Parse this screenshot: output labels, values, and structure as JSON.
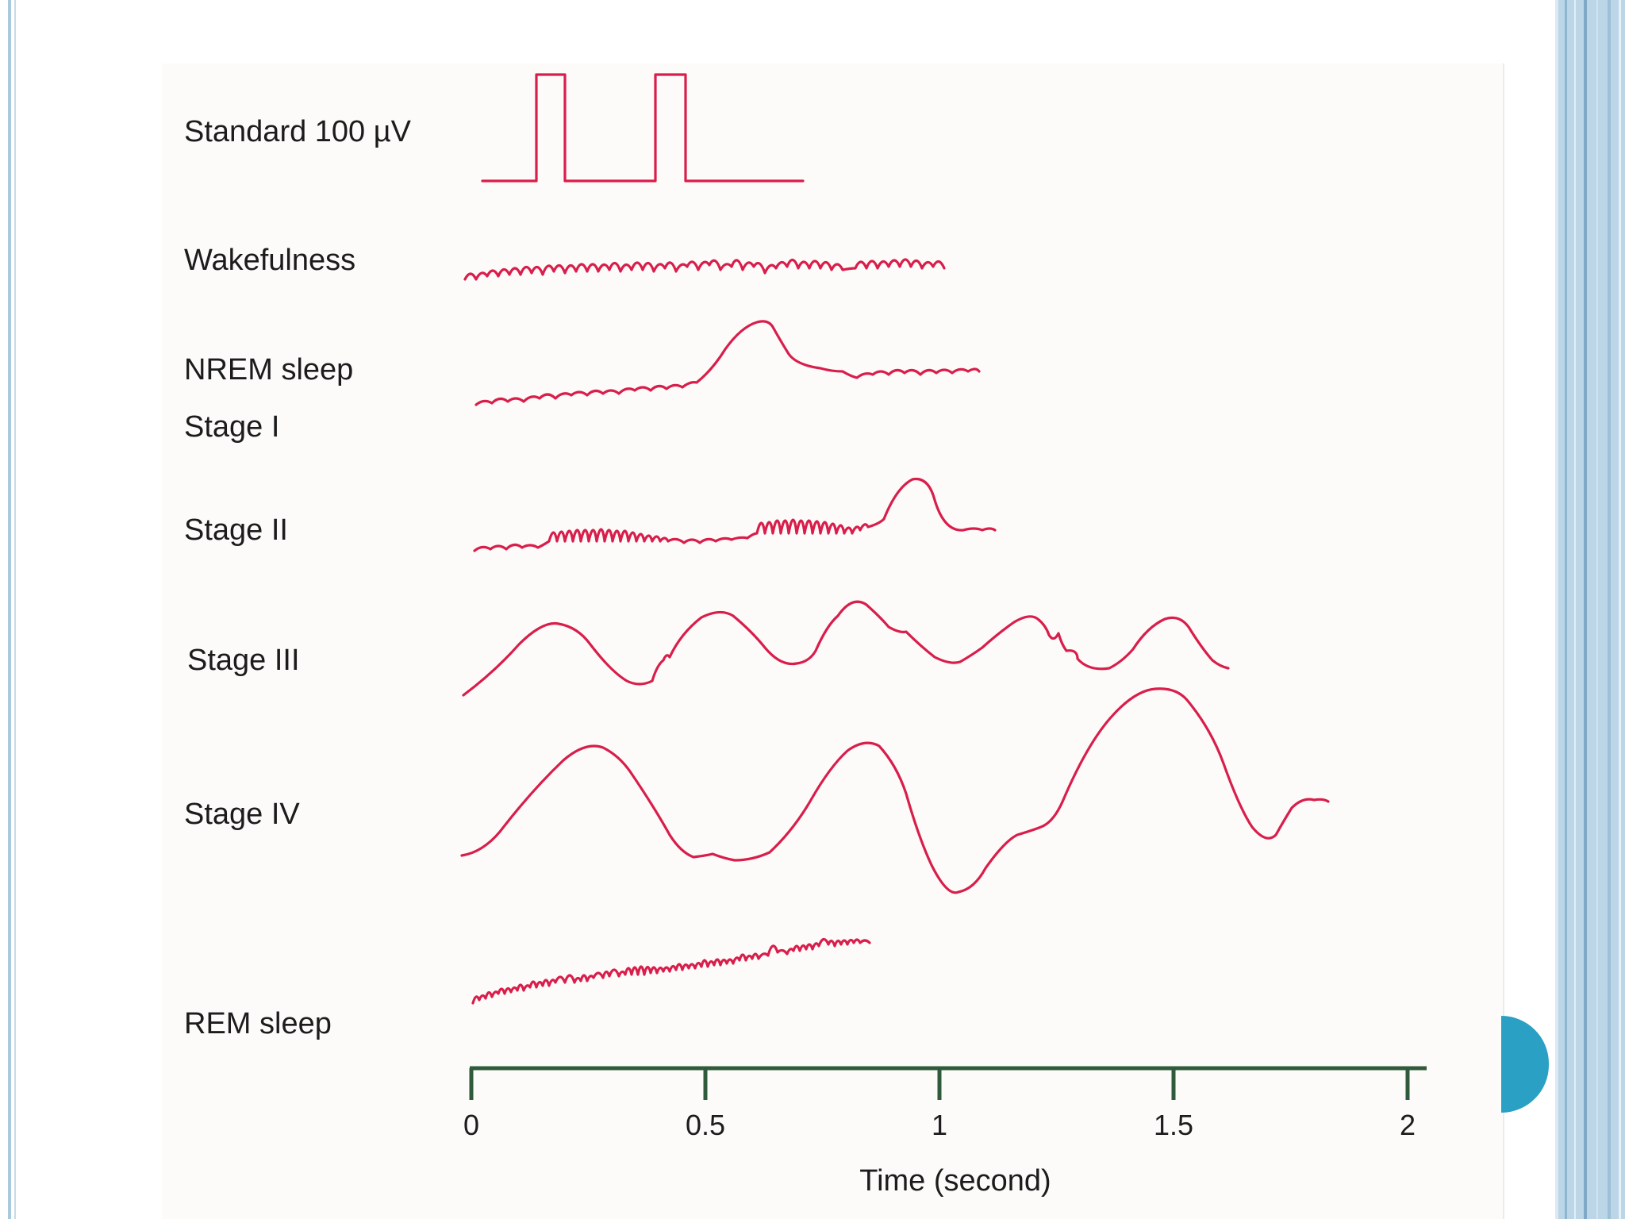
{
  "figure": {
    "rows": [
      {
        "label": "Standard 100 µV"
      },
      {
        "label": "Wakefulness"
      },
      {
        "label": "NREM sleep"
      },
      {
        "label": "Stage I"
      },
      {
        "label": "Stage II"
      },
      {
        "label": "Stage III"
      },
      {
        "label": "Stage IV"
      },
      {
        "label": "REM sleep"
      }
    ],
    "trace_color": "#d81e4a",
    "axis_color": "#2f5a3c"
  },
  "chart_data": {
    "type": "line",
    "xlabel": "Time (second)",
    "xlim": [
      0,
      2
    ],
    "ticks": [
      {
        "value": 0,
        "label": "0"
      },
      {
        "value": 0.5,
        "label": "0.5"
      },
      {
        "value": 1,
        "label": "1"
      },
      {
        "value": 1.5,
        "label": "1.5"
      },
      {
        "value": 2,
        "label": "2"
      }
    ]
  },
  "slide_number": {
    "color": "#2aa0c4"
  }
}
